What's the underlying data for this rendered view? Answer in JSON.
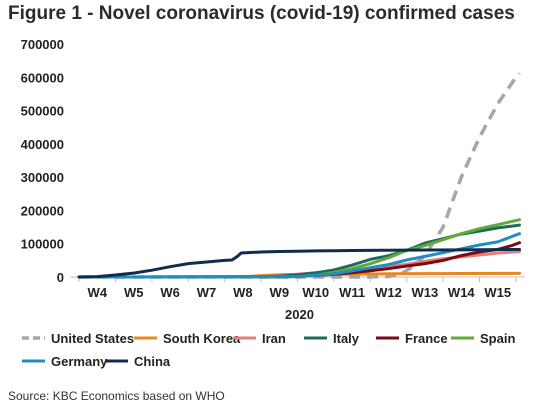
{
  "chart_data": {
    "type": "line",
    "title": "Figure 1 - Novel coronavirus (covid-19) confirmed cases",
    "xlabel": "2020",
    "ylabel": "",
    "ylim": [
      0,
      700000
    ],
    "yticks": [
      "0",
      "100000",
      "200000",
      "300000",
      "400000",
      "500000",
      "600000",
      "700000"
    ],
    "x_ticks": [
      "W4",
      "W5",
      "W6",
      "W7",
      "W8",
      "W9",
      "W10",
      "W11",
      "W12",
      "W13",
      "W14",
      "W15"
    ],
    "grid": false,
    "legend_position": "bottom",
    "source": "Source: KBC Economics based on WHO",
    "series": [
      {
        "name": "United States",
        "color": "#a6a6a6",
        "dash": true,
        "points": [
          [
            -0.5,
            0
          ],
          [
            7.5,
            0
          ],
          [
            8,
            1600
          ],
          [
            8.3,
            7000
          ],
          [
            8.6,
            26000
          ],
          [
            9,
            64000
          ],
          [
            9.5,
            150000
          ],
          [
            10,
            300000
          ],
          [
            10.5,
            420000
          ],
          [
            11,
            520000
          ],
          [
            11.5,
            600000
          ],
          [
            11.6,
            612000
          ]
        ]
      },
      {
        "name": "South Korea",
        "color": "#e8871e",
        "points": [
          [
            -0.5,
            0
          ],
          [
            3.5,
            200
          ],
          [
            4,
            900
          ],
          [
            4.5,
            4300
          ],
          [
            5,
            7000
          ],
          [
            5.5,
            7900
          ],
          [
            6,
            8300
          ],
          [
            7,
            8800
          ],
          [
            8,
            9600
          ],
          [
            9,
            10300
          ],
          [
            10,
            10600
          ],
          [
            11,
            10800
          ],
          [
            11.6,
            10900
          ]
        ]
      },
      {
        "name": "Iran",
        "color": "#e4807a",
        "points": [
          [
            -0.5,
            0
          ],
          [
            4.5,
            500
          ],
          [
            5,
            2900
          ],
          [
            5.5,
            8000
          ],
          [
            6,
            12700
          ],
          [
            6.5,
            16000
          ],
          [
            7,
            20600
          ],
          [
            7.5,
            26000
          ],
          [
            8,
            32000
          ],
          [
            8.5,
            38000
          ],
          [
            9,
            47600
          ],
          [
            9.5,
            55000
          ],
          [
            10,
            60500
          ],
          [
            10.5,
            66000
          ],
          [
            11,
            71700
          ],
          [
            11.6,
            76400
          ]
        ]
      },
      {
        "name": "Italy",
        "color": "#1d6b5b",
        "points": [
          [
            -0.5,
            0
          ],
          [
            4.5,
            500
          ],
          [
            5,
            2000
          ],
          [
            5.5,
            7000
          ],
          [
            6,
            12400
          ],
          [
            6.5,
            21000
          ],
          [
            7,
            35700
          ],
          [
            7.5,
            53000
          ],
          [
            8,
            63900
          ],
          [
            8.5,
            80000
          ],
          [
            9,
            101700
          ],
          [
            9.5,
            115000
          ],
          [
            10,
            128900
          ],
          [
            10.5,
            138000
          ],
          [
            11,
            147600
          ],
          [
            11.6,
            156000
          ]
        ]
      },
      {
        "name": "France",
        "color": "#7b0a14",
        "points": [
          [
            -0.5,
            0
          ],
          [
            5,
            200
          ],
          [
            5.5,
            1800
          ],
          [
            6,
            4500
          ],
          [
            6.5,
            7700
          ],
          [
            7,
            12500
          ],
          [
            7.5,
            19000
          ],
          [
            8,
            25200
          ],
          [
            8.5,
            33000
          ],
          [
            9,
            40200
          ],
          [
            9.5,
            50000
          ],
          [
            10,
            64300
          ],
          [
            10.5,
            75000
          ],
          [
            11,
            83000
          ],
          [
            11.4,
            95000
          ],
          [
            11.6,
            103000
          ]
        ]
      },
      {
        "name": "Spain",
        "color": "#62a83a",
        "points": [
          [
            -0.5,
            0
          ],
          [
            5,
            200
          ],
          [
            5.5,
            1200
          ],
          [
            6,
            5200
          ],
          [
            6.5,
            13700
          ],
          [
            7,
            25300
          ],
          [
            7.5,
            40000
          ],
          [
            8,
            57800
          ],
          [
            8.5,
            80000
          ],
          [
            9,
            94400
          ],
          [
            9.5,
            112000
          ],
          [
            10,
            130000
          ],
          [
            10.5,
            145000
          ],
          [
            11,
            157000
          ],
          [
            11.6,
            172000
          ]
        ]
      },
      {
        "name": "Germany",
        "color": "#1f8ec3",
        "points": [
          [
            -0.5,
            0
          ],
          [
            5,
            200
          ],
          [
            5.5,
            1600
          ],
          [
            6,
            4800
          ],
          [
            6.5,
            9300
          ],
          [
            7,
            18300
          ],
          [
            7.5,
            28000
          ],
          [
            8,
            37300
          ],
          [
            8.5,
            51000
          ],
          [
            9,
            61900
          ],
          [
            9.5,
            73000
          ],
          [
            10,
            84800
          ],
          [
            10.5,
            96000
          ],
          [
            11,
            105600
          ],
          [
            11.6,
            130000
          ]
        ]
      },
      {
        "name": "China",
        "color": "#0f2d4f",
        "points": [
          [
            -0.5,
            0
          ],
          [
            0,
            1300
          ],
          [
            0.5,
            6000
          ],
          [
            1,
            11800
          ],
          [
            1.5,
            20500
          ],
          [
            2,
            31000
          ],
          [
            2.5,
            40200
          ],
          [
            3,
            45200
          ],
          [
            3.5,
            50000
          ],
          [
            3.7,
            51000
          ],
          [
            3.85,
            62000
          ],
          [
            3.95,
            72000
          ],
          [
            4.5,
            75000
          ],
          [
            5,
            76500
          ],
          [
            5.5,
            77600
          ],
          [
            6,
            78400
          ],
          [
            6.5,
            79000
          ],
          [
            7,
            79500
          ],
          [
            8,
            80500
          ],
          [
            9,
            81000
          ],
          [
            10,
            81500
          ],
          [
            11,
            82300
          ],
          [
            11.6,
            82600
          ]
        ]
      }
    ]
  }
}
